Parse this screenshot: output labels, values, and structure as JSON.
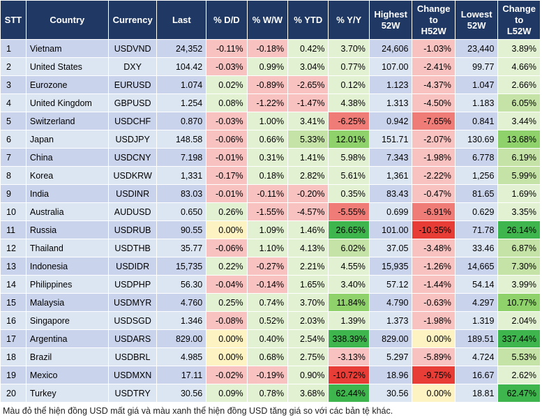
{
  "headers": [
    "STT",
    "Country",
    "Currency",
    "Last",
    "% D/D",
    "% W/W",
    "% YTD",
    "% Y/Y",
    "Highest\n52W",
    "Change\nto\nH52W",
    "Lowest\n52W",
    "Change\nto\nL52W"
  ],
  "rows": [
    [
      "1",
      "Vietnam",
      "USDVND",
      "24,352",
      "-0.11%",
      "-0.18%",
      "0.42%",
      "3.70%",
      "24,606",
      "-1.03%",
      "23,440",
      "3.89%"
    ],
    [
      "2",
      "United States",
      "DXY",
      "104.42",
      "-0.03%",
      "0.99%",
      "3.04%",
      "0.77%",
      "107.00",
      "-2.41%",
      "99.77",
      "4.66%"
    ],
    [
      "3",
      "Eurozone",
      "EURUSD",
      "1.074",
      "0.02%",
      "-0.89%",
      "-2.65%",
      "0.12%",
      "1.123",
      "-4.37%",
      "1.047",
      "2.66%"
    ],
    [
      "4",
      "United Kingdom",
      "GBPUSD",
      "1.254",
      "0.08%",
      "-1.22%",
      "-1.47%",
      "4.38%",
      "1.313",
      "-4.50%",
      "1.183",
      "6.05%"
    ],
    [
      "5",
      "Switzerland",
      "USDCHF",
      "0.870",
      "-0.03%",
      "1.00%",
      "3.41%",
      "-6.25%",
      "0.942",
      "-7.65%",
      "0.841",
      "3.44%"
    ],
    [
      "6",
      "Japan",
      "USDJPY",
      "148.58",
      "-0.06%",
      "0.66%",
      "5.33%",
      "12.01%",
      "151.71",
      "-2.07%",
      "130.69",
      "13.68%"
    ],
    [
      "7",
      "China",
      "USDCNY",
      "7.198",
      "-0.01%",
      "0.31%",
      "1.41%",
      "5.98%",
      "7.343",
      "-1.98%",
      "6.778",
      "6.19%"
    ],
    [
      "8",
      "Korea",
      "USDKRW",
      "1,331",
      "-0.17%",
      "0.18%",
      "2.82%",
      "5.61%",
      "1,361",
      "-2.22%",
      "1,256",
      "5.99%"
    ],
    [
      "9",
      "India",
      "USDINR",
      "83.03",
      "-0.01%",
      "-0.11%",
      "-0.20%",
      "0.35%",
      "83.43",
      "-0.47%",
      "81.65",
      "1.69%"
    ],
    [
      "10",
      "Australia",
      "AUDUSD",
      "0.650",
      "0.26%",
      "-1.55%",
      "-4.57%",
      "-5.55%",
      "0.699",
      "-6.91%",
      "0.629",
      "3.35%"
    ],
    [
      "11",
      "Russia",
      "USDRUB",
      "90.55",
      "0.00%",
      "1.09%",
      "1.46%",
      "26.65%",
      "101.00",
      "-10.35%",
      "71.78",
      "26.14%"
    ],
    [
      "12",
      "Thailand",
      "USDTHB",
      "35.77",
      "-0.06%",
      "1.10%",
      "4.13%",
      "6.02%",
      "37.05",
      "-3.48%",
      "33.46",
      "6.87%"
    ],
    [
      "13",
      "Indonesia",
      "USDIDR",
      "15,735",
      "0.22%",
      "-0.27%",
      "2.21%",
      "4.55%",
      "15,935",
      "-1.26%",
      "14,665",
      "7.30%"
    ],
    [
      "14",
      "Philippines",
      "USDPHP",
      "56.30",
      "-0.04%",
      "-0.14%",
      "1.65%",
      "3.40%",
      "57.12",
      "-1.44%",
      "54.14",
      "3.99%"
    ],
    [
      "15",
      "Malaysia",
      "USDMYR",
      "4.760",
      "0.25%",
      "0.74%",
      "3.70%",
      "11.84%",
      "4.790",
      "-0.63%",
      "4.297",
      "10.77%"
    ],
    [
      "16",
      "Singapore",
      "USDSGD",
      "1.346",
      "-0.08%",
      "0.52%",
      "2.03%",
      "1.39%",
      "1.373",
      "-1.98%",
      "1.319",
      "2.04%"
    ],
    [
      "17",
      "Argentina",
      "USDARS",
      "829.00",
      "0.00%",
      "0.40%",
      "2.54%",
      "338.39%",
      "829.00",
      "0.00%",
      "189.51",
      "337.44%"
    ],
    [
      "18",
      "Brazil",
      "USDBRL",
      "4.985",
      "0.00%",
      "0.68%",
      "2.75%",
      "-3.13%",
      "5.297",
      "-5.89%",
      "4.724",
      "5.53%"
    ],
    [
      "19",
      "Mexico",
      "USDMXN",
      "17.11",
      "-0.02%",
      "-0.19%",
      "0.90%",
      "-10.72%",
      "18.96",
      "-9.75%",
      "16.67",
      "2.62%"
    ],
    [
      "20",
      "Turkey",
      "USDTRY",
      "30.56",
      "0.09%",
      "0.78%",
      "3.68%",
      "62.44%",
      "30.56",
      "0.00%",
      "18.81",
      "62.47%"
    ]
  ],
  "colors": {
    "header_bg": "#1f3864",
    "row_odd": "#c9d3ec",
    "row_even": "#dce6f3",
    "neg_light": "#f7c2c0",
    "neg_mid": "#f07c78",
    "neg_strong": "#e83d36",
    "pos_light": "#e3f1d3",
    "pos_mid": "#c6e3a7",
    "pos_high": "#8fd16a",
    "pos_strong": "#3fb54d",
    "neutral": "#fdf3c2"
  },
  "note": "Màu đỏ thể hiện đồng USD mất giá và màu xanh thể hiện đồng USD tăng giá so với các bản tệ khác."
}
